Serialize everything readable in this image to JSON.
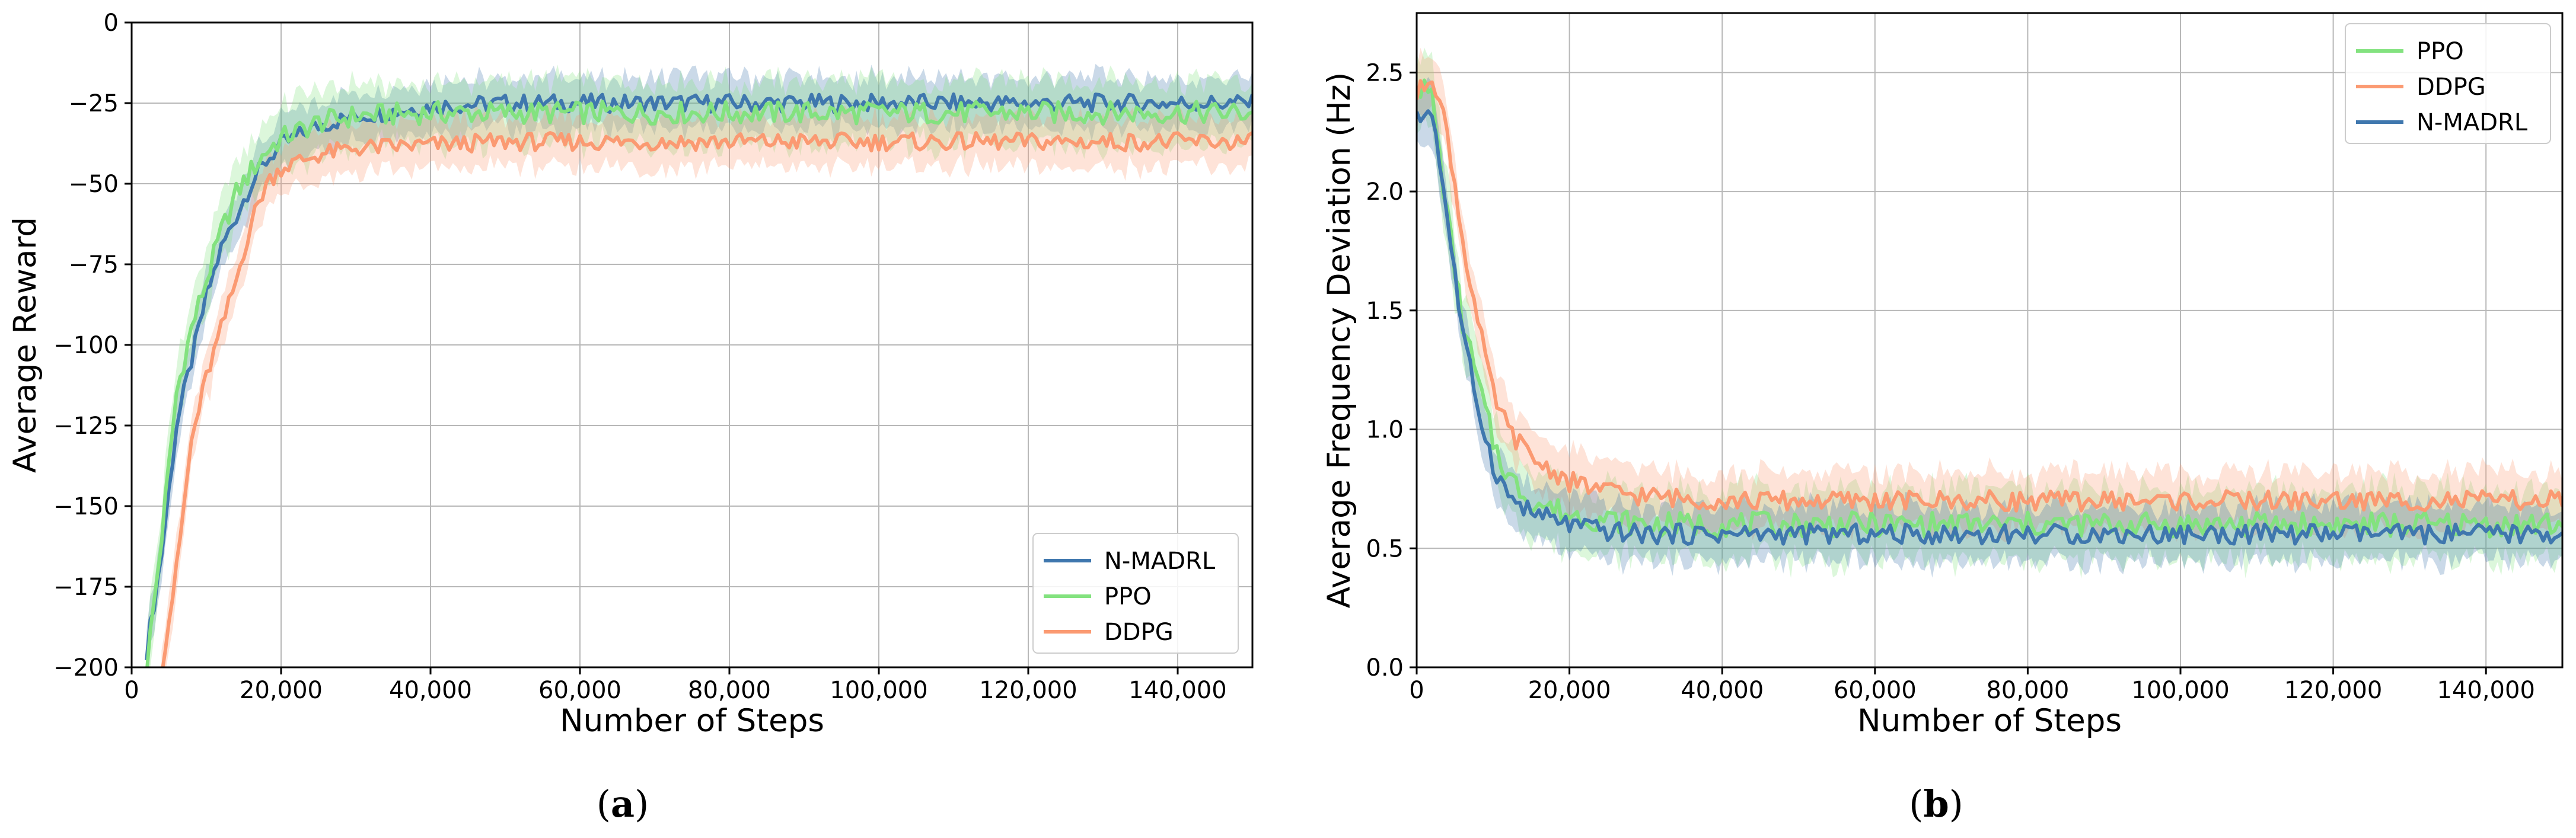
{
  "colors": {
    "n_madrl": "#3f77ae",
    "ppo": "#83e27f",
    "ddpg": "#fb9a72",
    "grid": "#b8b8b8",
    "axis": "#000000"
  },
  "chart_data": [
    {
      "id": "a",
      "type": "line",
      "caption": {
        "open": "(",
        "letter": "a",
        "close": ")"
      },
      "xlabel": "Number of Steps",
      "ylabel": "Average Reward",
      "xlim": [
        0,
        150000
      ],
      "ylim": [
        -200,
        0
      ],
      "xticks": [
        0,
        20000,
        40000,
        60000,
        80000,
        100000,
        120000,
        140000
      ],
      "xtick_labels": [
        "0",
        "20,000",
        "40,000",
        "60,000",
        "80,000",
        "100,000",
        "120,000",
        "140,000"
      ],
      "yticks": [
        -200,
        -175,
        -150,
        -125,
        -100,
        -75,
        -50,
        -25,
        0
      ],
      "ytick_labels": [
        "−200",
        "−175",
        "−150",
        "−125",
        "−100",
        "−75",
        "−50",
        "−25",
        "0"
      ],
      "grid": true,
      "legend_position": "lower-right",
      "legend": [
        "N-MADRL",
        "PPO",
        "DDPG"
      ],
      "series": [
        {
          "name": "N-MADRL",
          "color_key": "n_madrl",
          "band": 8,
          "x": [
            2000,
            4000,
            6000,
            8000,
            10000,
            12000,
            14000,
            16000,
            18000,
            20000,
            25000,
            30000,
            40000,
            50000,
            60000,
            80000,
            100000,
            120000,
            140000,
            150000
          ],
          "y": [
            -195,
            -165,
            -125,
            -105,
            -85,
            -70,
            -60,
            -50,
            -43,
            -38,
            -32,
            -29,
            -26,
            -25,
            -25,
            -25,
            -25,
            -25,
            -25,
            -25
          ]
        },
        {
          "name": "PPO",
          "color_key": "ppo",
          "band": 10,
          "x": [
            2000,
            4000,
            6000,
            8000,
            10000,
            12000,
            14000,
            16000,
            18000,
            20000,
            25000,
            30000,
            40000,
            50000,
            60000,
            80000,
            100000,
            120000,
            140000,
            150000
          ],
          "y": [
            -200,
            -160,
            -115,
            -95,
            -80,
            -65,
            -53,
            -46,
            -40,
            -36,
            -31,
            -29,
            -28,
            -28,
            -28,
            -28,
            -28,
            -28,
            -28,
            -28
          ]
        },
        {
          "name": "DDPG",
          "color_key": "ddpg",
          "band": 8,
          "x": [
            4000,
            6000,
            8000,
            10000,
            12000,
            14000,
            16000,
            18000,
            20000,
            25000,
            30000,
            40000,
            50000,
            60000,
            80000,
            100000,
            120000,
            140000,
            150000
          ],
          "y": [
            -200,
            -170,
            -130,
            -110,
            -95,
            -80,
            -62,
            -50,
            -45,
            -41,
            -39,
            -38,
            -37,
            -37,
            -37,
            -37,
            -37,
            -37,
            -37
          ]
        }
      ]
    },
    {
      "id": "b",
      "type": "line",
      "caption": {
        "open": "(",
        "letter": "b",
        "close": ")"
      },
      "xlabel": "Number of Steps",
      "ylabel": "Average Frequency Deviation (Hz)",
      "xlim": [
        0,
        150000
      ],
      "ylim": [
        0,
        2.75
      ],
      "xticks": [
        0,
        20000,
        40000,
        60000,
        80000,
        100000,
        120000,
        140000
      ],
      "xtick_labels": [
        "0",
        "20,000",
        "40,000",
        "60,000",
        "80,000",
        "100,000",
        "120,000",
        "140,000"
      ],
      "yticks": [
        0,
        0.5,
        1.0,
        1.5,
        2.0,
        2.5
      ],
      "ytick_labels": [
        "0.0",
        "0.5",
        "1.0",
        "1.5",
        "2.0",
        "2.5"
      ],
      "grid": true,
      "legend_position": "upper-right",
      "legend": [
        "PPO",
        "DDPG",
        "N-MADRL"
      ],
      "series": [
        {
          "name": "PPO",
          "color_key": "ppo",
          "band": 0.15,
          "x": [
            0,
            2000,
            4000,
            6000,
            8000,
            10000,
            12000,
            15000,
            20000,
            25000,
            30000,
            40000,
            60000,
            80000,
            100000,
            120000,
            140000,
            150000
          ],
          "y": [
            2.45,
            2.4,
            1.9,
            1.45,
            1.2,
            0.95,
            0.8,
            0.7,
            0.64,
            0.62,
            0.6,
            0.6,
            0.6,
            0.6,
            0.6,
            0.6,
            0.6,
            0.6
          ]
        },
        {
          "name": "DDPG",
          "color_key": "ddpg",
          "band": 0.12,
          "x": [
            0,
            2000,
            4000,
            6000,
            8000,
            10000,
            12000,
            15000,
            20000,
            25000,
            30000,
            40000,
            60000,
            80000,
            100000,
            120000,
            140000,
            150000
          ],
          "y": [
            2.4,
            2.5,
            2.25,
            1.8,
            1.45,
            1.15,
            1.0,
            0.88,
            0.78,
            0.74,
            0.72,
            0.7,
            0.7,
            0.7,
            0.7,
            0.7,
            0.7,
            0.7
          ]
        },
        {
          "name": "N-MADRL",
          "color_key": "n_madrl",
          "band": 0.12,
          "x": [
            0,
            2000,
            4000,
            6000,
            8000,
            10000,
            12000,
            15000,
            20000,
            25000,
            30000,
            40000,
            60000,
            80000,
            100000,
            120000,
            140000,
            150000
          ],
          "y": [
            2.3,
            2.35,
            1.9,
            1.4,
            1.1,
            0.85,
            0.72,
            0.65,
            0.6,
            0.57,
            0.56,
            0.56,
            0.56,
            0.56,
            0.56,
            0.56,
            0.56,
            0.56
          ]
        }
      ]
    }
  ]
}
